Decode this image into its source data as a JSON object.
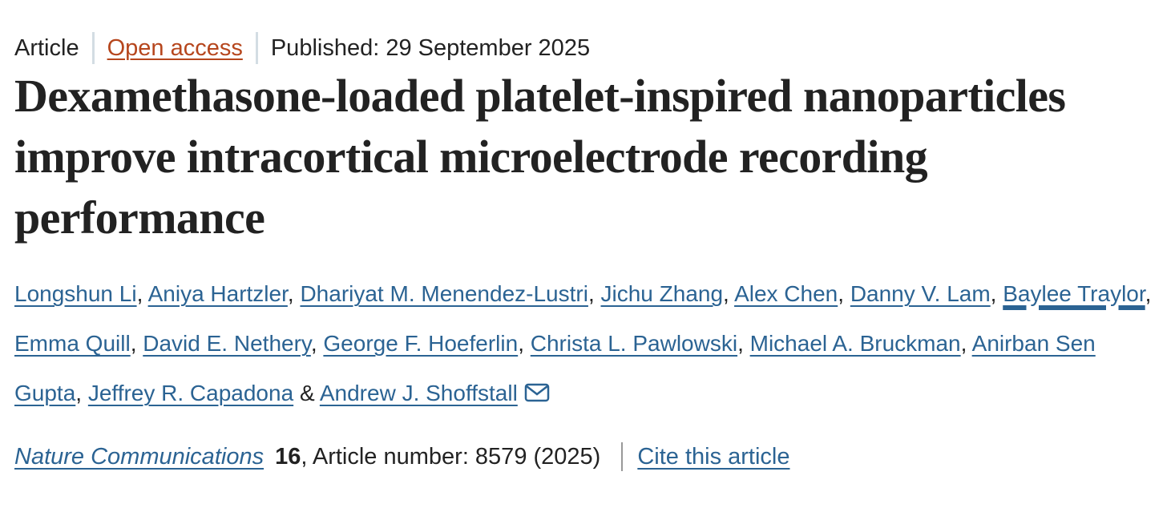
{
  "meta": {
    "type": "Article",
    "access": "Open access",
    "published": "Published: 29 September 2025"
  },
  "title": "Dexamethasone-loaded platelet-inspired nanoparticles improve intracortical microelectrode recording performance",
  "authors": [
    "Longshun Li",
    "Aniya Hartzler",
    "Dhariyat M. Menendez-Lustri",
    "Jichu Zhang",
    "Alex Chen",
    "Danny V. Lam",
    "Baylee Traylor",
    "Emma Quill",
    "David E. Nethery",
    "George F. Hoeferlin",
    "Christa L. Pawlowski",
    "Michael A. Bruckman",
    "Anirban Sen Gupta",
    "Jeffrey R. Capadona",
    "Andrew J. Shoffstall"
  ],
  "authors_joiner": "&",
  "citation": {
    "journal": "Nature Communications",
    "volume": "16",
    "article_number": ", Article number: 8579 (2025)",
    "cite_link": "Cite this article"
  },
  "colors": {
    "link": "#2b6393",
    "open_access": "#b6461d",
    "text": "#222222"
  }
}
